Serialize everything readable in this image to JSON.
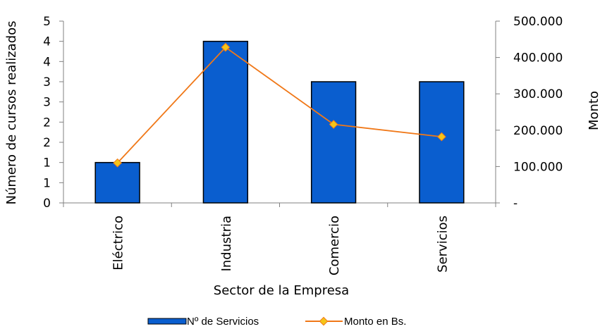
{
  "chart_data": {
    "type": "bar",
    "categories": [
      "Eléctrico",
      "Industria",
      "Comercio",
      "Servicios"
    ],
    "xlabel": "Sector de la Empresa",
    "ylabel": "Número de cursos realizados",
    "y2label": "Monto",
    "ylim": [
      0,
      4.5
    ],
    "y2lim": [
      0,
      500000
    ],
    "left_tick_values": [
      0,
      0.5,
      1,
      1.5,
      2,
      2.5,
      3,
      3.5,
      4,
      4.5
    ],
    "left_tick_labels": [
      "0",
      "1",
      "1",
      "2",
      "2",
      "3",
      "3",
      "4",
      "4",
      "5"
    ],
    "right_tick_values": [
      0,
      100000,
      200000,
      300000,
      400000,
      500000
    ],
    "right_tick_labels": [
      "-",
      "100.000",
      "200.000",
      "300.000",
      "400.000",
      "500.000"
    ],
    "grid": false,
    "legend_position": "bottom",
    "series": [
      {
        "name": "Nº de Servicios",
        "type": "bar",
        "axis": "left",
        "values": [
          1,
          4,
          3,
          3
        ],
        "color": "#0a5ecf",
        "stroke": "#000000"
      },
      {
        "name": "Monto en Bs.",
        "type": "line",
        "axis": "right",
        "values": [
          110000,
          428000,
          216000,
          182000
        ],
        "color": "#f07818",
        "marker_color": "#f5c518"
      }
    ]
  }
}
